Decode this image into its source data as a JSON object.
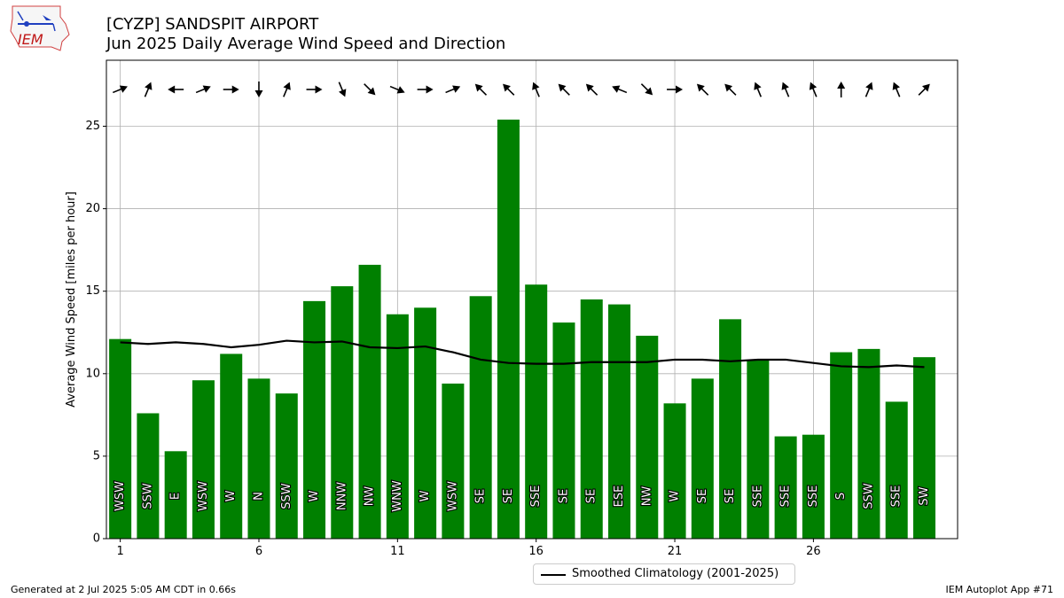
{
  "logo_text": "IEM",
  "header": {
    "title_line1": "[CYZP] SANDSPIT AIRPORT",
    "title_line2": "Jun 2025 Daily Average Wind Speed and Direction"
  },
  "footer": {
    "left": "Generated at 2 Jul 2025 5:05 AM CDT in 0.66s",
    "right": "IEM Autoplot App #71"
  },
  "chart_data": {
    "type": "bar",
    "ylabel": "Average Wind Speed [miles per hour]",
    "xlabel": "",
    "ylim": [
      0,
      29
    ],
    "xlim": [
      0.5,
      31.2
    ],
    "x_ticks": [
      1,
      6,
      11,
      16,
      21,
      26
    ],
    "y_ticks": [
      0,
      5,
      10,
      15,
      20,
      25
    ],
    "grid": true,
    "bar_color": "#008000",
    "days": [
      1,
      2,
      3,
      4,
      5,
      6,
      7,
      8,
      9,
      10,
      11,
      12,
      13,
      14,
      15,
      16,
      17,
      18,
      19,
      20,
      21,
      22,
      23,
      24,
      25,
      26,
      27,
      28,
      29,
      30
    ],
    "series": [
      {
        "values": [
          12.1,
          7.6,
          5.3,
          9.6,
          11.2,
          9.7,
          8.8,
          14.4,
          15.3,
          16.6,
          13.6,
          14.0,
          9.4,
          14.7,
          25.4,
          15.4,
          13.1,
          14.5,
          14.2,
          12.3,
          8.2,
          9.7,
          13.3,
          10.8,
          6.2,
          6.3,
          11.3,
          11.5,
          8.3,
          11.0
        ]
      },
      {
        "name": "Smoothed Climatology (2001-2025)",
        "color": "#000000",
        "values": [
          11.9,
          11.8,
          11.9,
          11.8,
          11.6,
          11.75,
          12.0,
          11.9,
          11.95,
          11.6,
          11.55,
          11.65,
          11.3,
          10.85,
          10.65,
          10.6,
          10.6,
          10.7,
          10.7,
          10.7,
          10.85,
          10.85,
          10.75,
          10.85,
          10.85,
          10.65,
          10.45,
          10.4,
          10.5,
          10.4
        ]
      }
    ],
    "directions": [
      "WSW",
      "SSW",
      "E",
      "WSW",
      "W",
      "N",
      "SSW",
      "W",
      "NNW",
      "NW",
      "WNW",
      "W",
      "WSW",
      "SE",
      "SE",
      "SSE",
      "SE",
      "SE",
      "ESE",
      "NW",
      "W",
      "SE",
      "SE",
      "SSE",
      "SSE",
      "SSE",
      "S",
      "SSW",
      "SSE",
      "SW"
    ],
    "legend_position": "lower-center"
  }
}
